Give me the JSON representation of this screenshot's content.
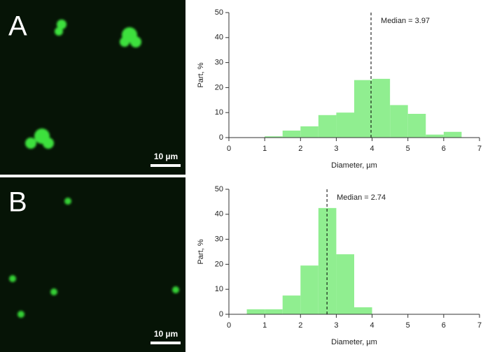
{
  "panels": [
    {
      "label": "A",
      "scale_bar": "10 µm"
    },
    {
      "label": "B",
      "scale_bar": "10 µm"
    }
  ],
  "chart_data": [
    {
      "type": "histogram",
      "xlabel": "Diameter, µm",
      "ylabel": "Part, %",
      "bins": [
        1,
        1.5,
        2,
        2.5,
        3,
        3.5,
        4,
        4.5,
        5,
        5.5,
        6,
        6.5
      ],
      "values": [
        0.5,
        2.8,
        4.5,
        9,
        10,
        23,
        23.5,
        13,
        9.5,
        1.2,
        2.3
      ],
      "color": "#90ee90",
      "median": 3.97,
      "median_label": "Median = 3.97",
      "xlim": [
        0,
        7
      ],
      "xticks": [
        0,
        1,
        2,
        3,
        4,
        5,
        6,
        7
      ],
      "ylim": [
        0,
        50
      ],
      "yticks": [
        0,
        10,
        20,
        30,
        40,
        50
      ]
    },
    {
      "type": "histogram",
      "xlabel": "Diameter, µm",
      "ylabel": "Part, %",
      "bins": [
        0.5,
        1,
        1.5,
        2,
        2.5,
        3,
        3.5,
        4
      ],
      "values": [
        2,
        2,
        7.5,
        19.5,
        42.5,
        24,
        2.8
      ],
      "color": "#90ee90",
      "median": 2.74,
      "median_label": "Median = 2.74",
      "xlim": [
        0,
        7
      ],
      "xticks": [
        0,
        1,
        2,
        3,
        4,
        5,
        6,
        7
      ],
      "ylim": [
        0,
        50
      ],
      "yticks": [
        0,
        10,
        20,
        30,
        40,
        50
      ]
    }
  ]
}
